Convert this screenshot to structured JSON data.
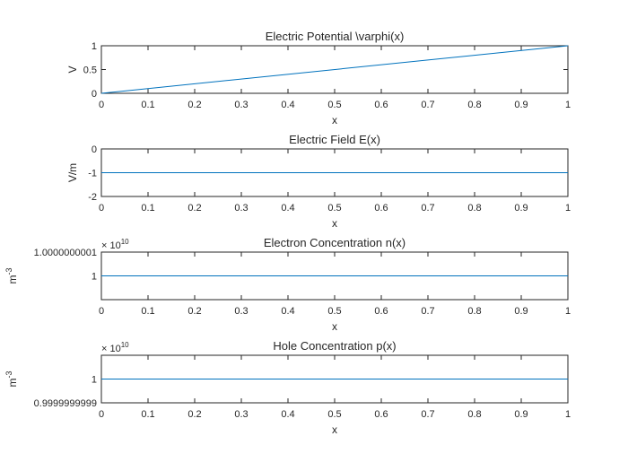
{
  "figure": {
    "background": "#ffffff",
    "axis_color": "#262626",
    "line_color": "#0072BD"
  },
  "chart_data": [
    {
      "type": "line",
      "title": "Electric Potential \\varphi(x)",
      "xlabel": "x",
      "ylabel": "V",
      "xlim": [
        0,
        1
      ],
      "ylim": [
        0,
        1
      ],
      "x_ticks": [
        "0",
        "0.1",
        "0.2",
        "0.3",
        "0.4",
        "0.5",
        "0.6",
        "0.7",
        "0.8",
        "0.9",
        "1"
      ],
      "y_ticks": [
        "0",
        "0.5",
        "1"
      ],
      "y_exponent": "",
      "grid": false,
      "series": [
        {
          "x": [
            0,
            1
          ],
          "y": [
            0,
            1
          ]
        }
      ]
    },
    {
      "type": "line",
      "title": "Electric Field E(x)",
      "xlabel": "x",
      "ylabel": "V/m",
      "xlim": [
        0,
        1
      ],
      "ylim": [
        -2,
        0
      ],
      "x_ticks": [
        "0",
        "0.1",
        "0.2",
        "0.3",
        "0.4",
        "0.5",
        "0.6",
        "0.7",
        "0.8",
        "0.9",
        "1"
      ],
      "y_ticks": [
        "-2",
        "-1",
        "0"
      ],
      "y_exponent": "",
      "grid": false,
      "series": [
        {
          "x": [
            0,
            1
          ],
          "y": [
            -1,
            -1
          ]
        }
      ]
    },
    {
      "type": "line",
      "title": "Electron Concentration n(x)",
      "xlabel": "x",
      "ylabel": "m",
      "ylabel_sup": "-3",
      "xlim": [
        0,
        1
      ],
      "ylim": [
        0.9999999999,
        1.0000000001
      ],
      "x_ticks": [
        "0",
        "0.1",
        "0.2",
        "0.3",
        "0.4",
        "0.5",
        "0.6",
        "0.7",
        "0.8",
        "0.9",
        "1"
      ],
      "y_ticks": [
        "1",
        "1.0000000001"
      ],
      "y_exponent": "10",
      "y_multiplier": "× 10",
      "grid": false,
      "series": [
        {
          "x": [
            0,
            1
          ],
          "y": [
            1,
            1
          ]
        }
      ]
    },
    {
      "type": "line",
      "title": "Hole Concentration p(x)",
      "xlabel": "x",
      "ylabel": "m",
      "ylabel_sup": "-3",
      "xlim": [
        0,
        1
      ],
      "ylim": [
        0.9999999999,
        1.0000000001
      ],
      "x_ticks": [
        "0",
        "0.1",
        "0.2",
        "0.3",
        "0.4",
        "0.5",
        "0.6",
        "0.7",
        "0.8",
        "0.9",
        "1"
      ],
      "y_ticks": [
        "0.9999999999",
        "1"
      ],
      "y_exponent": "10",
      "y_multiplier": "× 10",
      "grid": false,
      "series": [
        {
          "x": [
            0,
            1
          ],
          "y": [
            1,
            1
          ]
        }
      ]
    }
  ]
}
